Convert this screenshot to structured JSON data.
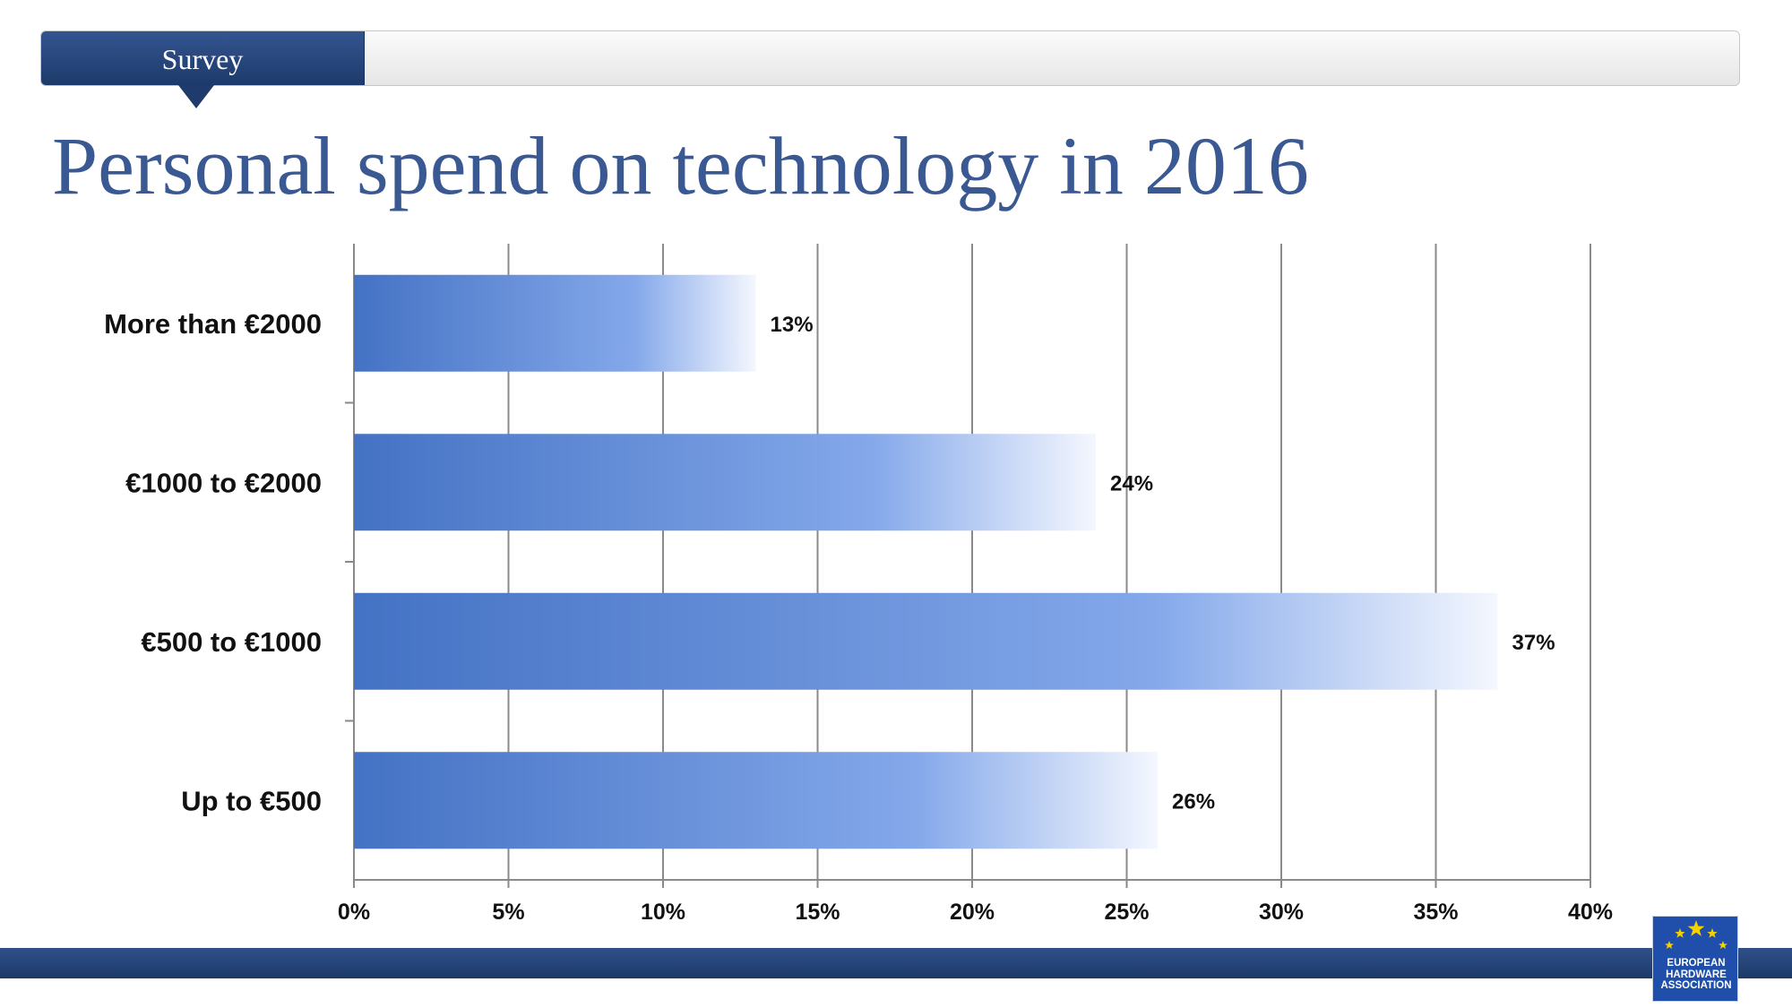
{
  "header": {
    "section_label": "Survey"
  },
  "title": "Personal spend on technology in 2016",
  "chart_data": {
    "type": "bar",
    "orientation": "horizontal",
    "title": "Personal spend on technology in 2016",
    "categories": [
      "More than €2000",
      "€1000 to €2000",
      "€500 to €1000",
      "Up to €500"
    ],
    "values": [
      13,
      24,
      37,
      26
    ],
    "value_labels": [
      "13%",
      "24%",
      "37%",
      "26%"
    ],
    "xlim": [
      0,
      40
    ],
    "xticks": [
      "0%",
      "5%",
      "10%",
      "15%",
      "20%",
      "25%",
      "30%",
      "35%",
      "40%"
    ],
    "xtick_values": [
      0,
      5,
      10,
      15,
      20,
      25,
      30,
      35,
      40
    ],
    "grid": true,
    "legend": "none",
    "bar_colors": [
      "#4472c4",
      "#84a8ea",
      "#f4f7fe"
    ]
  },
  "logo": {
    "lines": [
      "EUROPEAN",
      "HARDWARE",
      "ASSOCIATION"
    ],
    "background": "#1f4faa",
    "star_color": "#f5d100"
  },
  "colors": {
    "brand_dark": "#1d3a6b",
    "title": "#3a5992",
    "gridline": "#8a8a8a"
  }
}
